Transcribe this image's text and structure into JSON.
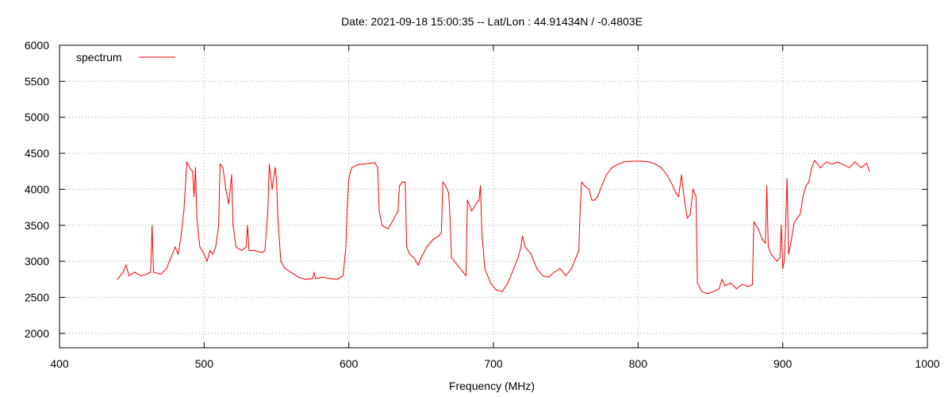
{
  "chart_data": {
    "type": "line",
    "title": "Date: 2021-09-18 15:00:35  --  Lat/Lon : 44.91434N / -0.4803E",
    "xlabel": "Frequency (MHz)",
    "ylabel": "",
    "xlim": [
      400,
      1000
    ],
    "ylim": [
      1800,
      6000
    ],
    "x_ticks": [
      400,
      500,
      600,
      700,
      800,
      900,
      1000
    ],
    "y_ticks": [
      2000,
      2500,
      3000,
      3500,
      4000,
      4500,
      5000,
      5500,
      6000
    ],
    "grid": true,
    "legend_position": "top-left",
    "series": [
      {
        "name": "spectrum",
        "color": "#ff0000",
        "points": [
          [
            440,
            2750
          ],
          [
            444,
            2850
          ],
          [
            446,
            2950
          ],
          [
            448,
            2800
          ],
          [
            452,
            2850
          ],
          [
            456,
            2800
          ],
          [
            460,
            2820
          ],
          [
            463,
            2850
          ],
          [
            464,
            3500
          ],
          [
            465,
            2850
          ],
          [
            470,
            2820
          ],
          [
            474,
            2900
          ],
          [
            477,
            3050
          ],
          [
            480,
            3200
          ],
          [
            482,
            3100
          ],
          [
            484,
            3350
          ],
          [
            486,
            3700
          ],
          [
            488,
            4380
          ],
          [
            490,
            4300
          ],
          [
            492,
            4250
          ],
          [
            493,
            3900
          ],
          [
            494,
            4300
          ],
          [
            495,
            3600
          ],
          [
            497,
            3200
          ],
          [
            500,
            3100
          ],
          [
            502,
            3000
          ],
          [
            504,
            3150
          ],
          [
            506,
            3100
          ],
          [
            508,
            3200
          ],
          [
            510,
            3500
          ],
          [
            511,
            4350
          ],
          [
            513,
            4300
          ],
          [
            515,
            4000
          ],
          [
            517,
            3800
          ],
          [
            519,
            4200
          ],
          [
            520,
            3500
          ],
          [
            522,
            3200
          ],
          [
            526,
            3150
          ],
          [
            529,
            3200
          ],
          [
            530,
            3500
          ],
          [
            531,
            3150
          ],
          [
            535,
            3150
          ],
          [
            540,
            3120
          ],
          [
            542,
            3150
          ],
          [
            544,
            3700
          ],
          [
            545,
            4350
          ],
          [
            547,
            4000
          ],
          [
            549,
            4300
          ],
          [
            550,
            4150
          ],
          [
            551,
            3600
          ],
          [
            553,
            3000
          ],
          [
            556,
            2900
          ],
          [
            560,
            2850
          ],
          [
            565,
            2780
          ],
          [
            570,
            2750
          ],
          [
            575,
            2760
          ],
          [
            576,
            2850
          ],
          [
            577,
            2760
          ],
          [
            582,
            2780
          ],
          [
            587,
            2760
          ],
          [
            592,
            2750
          ],
          [
            596,
            2800
          ],
          [
            598,
            3200
          ],
          [
            599,
            3800
          ],
          [
            600,
            4150
          ],
          [
            602,
            4300
          ],
          [
            606,
            4340
          ],
          [
            610,
            4350
          ],
          [
            614,
            4360
          ],
          [
            618,
            4370
          ],
          [
            620,
            4300
          ],
          [
            621,
            3700
          ],
          [
            623,
            3500
          ],
          [
            627,
            3450
          ],
          [
            630,
            3550
          ],
          [
            634,
            3700
          ],
          [
            635,
            4050
          ],
          [
            637,
            4100
          ],
          [
            639,
            4100
          ],
          [
            640,
            3200
          ],
          [
            642,
            3100
          ],
          [
            645,
            3050
          ],
          [
            648,
            2950
          ],
          [
            650,
            3050
          ],
          [
            654,
            3200
          ],
          [
            658,
            3300
          ],
          [
            662,
            3350
          ],
          [
            664,
            3400
          ],
          [
            665,
            4100
          ],
          [
            667,
            4050
          ],
          [
            669,
            3950
          ],
          [
            670,
            3600
          ],
          [
            671,
            3050
          ],
          [
            675,
            2950
          ],
          [
            679,
            2850
          ],
          [
            681,
            2800
          ],
          [
            682,
            3850
          ],
          [
            685,
            3700
          ],
          [
            688,
            3800
          ],
          [
            690,
            3850
          ],
          [
            691,
            4050
          ],
          [
            692,
            3400
          ],
          [
            694,
            2900
          ],
          [
            698,
            2700
          ],
          [
            702,
            2600
          ],
          [
            706,
            2580
          ],
          [
            710,
            2700
          ],
          [
            714,
            2900
          ],
          [
            717,
            3050
          ],
          [
            719,
            3200
          ],
          [
            720,
            3350
          ],
          [
            722,
            3200
          ],
          [
            726,
            3100
          ],
          [
            730,
            2900
          ],
          [
            734,
            2800
          ],
          [
            738,
            2780
          ],
          [
            742,
            2850
          ],
          [
            746,
            2900
          ],
          [
            750,
            2800
          ],
          [
            754,
            2900
          ],
          [
            757,
            3050
          ],
          [
            759,
            3150
          ],
          [
            760,
            3750
          ],
          [
            761,
            4100
          ],
          [
            763,
            4050
          ],
          [
            766,
            4000
          ],
          [
            768,
            3850
          ],
          [
            770,
            3850
          ],
          [
            772,
            3900
          ],
          [
            774,
            4000
          ],
          [
            776,
            4100
          ],
          [
            778,
            4200
          ],
          [
            782,
            4300
          ],
          [
            786,
            4350
          ],
          [
            790,
            4380
          ],
          [
            796,
            4390
          ],
          [
            802,
            4390
          ],
          [
            808,
            4380
          ],
          [
            812,
            4350
          ],
          [
            816,
            4300
          ],
          [
            820,
            4200
          ],
          [
            824,
            4050
          ],
          [
            826,
            3950
          ],
          [
            828,
            3900
          ],
          [
            830,
            4200
          ],
          [
            832,
            3850
          ],
          [
            834,
            3600
          ],
          [
            836,
            3650
          ],
          [
            838,
            4000
          ],
          [
            840,
            3900
          ],
          [
            841,
            2700
          ],
          [
            844,
            2580
          ],
          [
            848,
            2550
          ],
          [
            852,
            2580
          ],
          [
            856,
            2620
          ],
          [
            858,
            2750
          ],
          [
            860,
            2660
          ],
          [
            864,
            2700
          ],
          [
            868,
            2620
          ],
          [
            872,
            2680
          ],
          [
            876,
            2650
          ],
          [
            879,
            2680
          ],
          [
            880,
            3550
          ],
          [
            883,
            3450
          ],
          [
            886,
            3300
          ],
          [
            888,
            3250
          ],
          [
            889,
            4050
          ],
          [
            890,
            3200
          ],
          [
            892,
            3100
          ],
          [
            894,
            3050
          ],
          [
            896,
            3000
          ],
          [
            898,
            3050
          ],
          [
            899,
            3500
          ],
          [
            900,
            2900
          ],
          [
            901,
            3000
          ],
          [
            902,
            3500
          ],
          [
            903,
            4150
          ],
          [
            904,
            3100
          ],
          [
            906,
            3300
          ],
          [
            908,
            3550
          ],
          [
            910,
            3600
          ],
          [
            912,
            3650
          ],
          [
            914,
            3900
          ],
          [
            916,
            4050
          ],
          [
            918,
            4100
          ],
          [
            920,
            4300
          ],
          [
            922,
            4400
          ],
          [
            926,
            4300
          ],
          [
            930,
            4380
          ],
          [
            934,
            4350
          ],
          [
            938,
            4380
          ],
          [
            942,
            4340
          ],
          [
            946,
            4300
          ],
          [
            950,
            4380
          ],
          [
            954,
            4300
          ],
          [
            958,
            4360
          ],
          [
            960,
            4250
          ]
        ]
      }
    ]
  }
}
